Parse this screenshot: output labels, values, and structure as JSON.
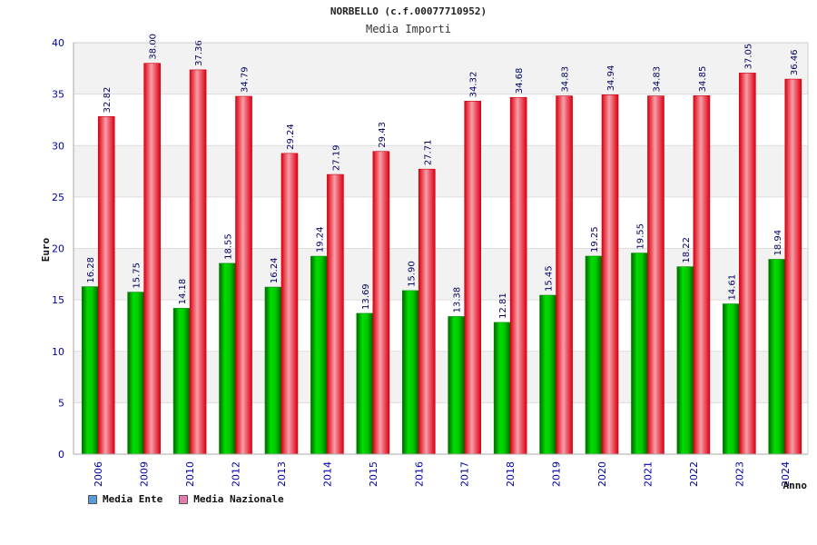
{
  "chart_data": {
    "type": "bar",
    "title": "NORBELLO (c.f.00077710952)",
    "subtitle": "Media Importi",
    "ylabel": "Euro",
    "xlabel": "Anno",
    "ylim": [
      0,
      40
    ],
    "yticks": [
      0,
      5,
      10,
      15,
      20,
      25,
      30,
      35,
      40
    ],
    "categories": [
      "2006",
      "2009",
      "2010",
      "2012",
      "2013",
      "2014",
      "2015",
      "2016",
      "2017",
      "2018",
      "2019",
      "2020",
      "2021",
      "2022",
      "2023",
      "2024"
    ],
    "series": [
      {
        "name": "Media Ente",
        "values": [
          16.28,
          15.75,
          14.18,
          18.55,
          16.24,
          19.24,
          13.69,
          15.9,
          13.38,
          12.81,
          15.45,
          19.25,
          19.55,
          18.22,
          14.61,
          18.94
        ],
        "labels": [
          "16.28",
          "15.75",
          "14.18",
          "18.55",
          "16.24",
          "19.24",
          "13.69",
          "15.90",
          "13.38",
          "12.81",
          "15.45",
          "19.25",
          "19.55",
          "18.22",
          "14.61",
          "18.94"
        ]
      },
      {
        "name": "Media Nazionale",
        "values": [
          32.82,
          38.0,
          37.36,
          34.79,
          29.24,
          27.19,
          29.43,
          27.71,
          34.32,
          34.68,
          34.83,
          34.94,
          34.83,
          34.85,
          37.05,
          36.46
        ],
        "labels": [
          "32.82",
          "38.00",
          "37.36",
          "34.79",
          "29.24",
          "27.19",
          "29.43",
          "27.71",
          "34.32",
          "34.68",
          "34.83",
          "34.94",
          "34.83",
          "34.85",
          "37.05",
          "36.46"
        ]
      }
    ]
  },
  "legend": {
    "items": [
      {
        "label": "Media Ente",
        "color": "#5b9bd5"
      },
      {
        "label": "Media Nazionale",
        "color": "#e07ab0"
      }
    ]
  },
  "colors": {
    "ente_fill": "#00b000",
    "naz_fill": "#e8101e",
    "band": "#f2f2f2",
    "tick_label": "#0000aa",
    "value_label": "#000060"
  }
}
